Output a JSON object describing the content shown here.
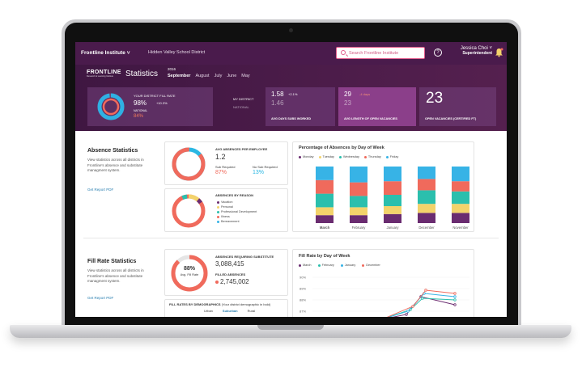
{
  "topnav": {
    "brand": "Frontline Institute",
    "district": "Hidden Valley School District",
    "search_placeholder": "Search Frontline Institute",
    "user_name": "Jessica Choi",
    "user_role": "Superintendent",
    "help_label": "?"
  },
  "hero": {
    "logo": "FRONTLINE",
    "logo_sub": "Research & Learning Institute",
    "title": "Statistics",
    "year": "2016",
    "months": [
      "September",
      "August",
      "July",
      "June",
      "May"
    ],
    "fill_rate": {
      "label": "YOUR DISTRICT FILL RATE",
      "value": "98%",
      "delta": "+10.3%",
      "national_label": "NATIONAL",
      "national_value": "84%",
      "ring_fraction": 0.98
    },
    "my_district_label": "MY DISTRICT",
    "national_label": "NATIONAL",
    "subs": {
      "value": "1.58",
      "delta": "+2.1%",
      "national": "1.46",
      "label": "AVG DAYS SUBS WORKED"
    },
    "vacancies": {
      "value": "29",
      "delta": "-4 days",
      "national": "23",
      "label": "AVG LENGTH OF OPEN VACANCIES"
    },
    "open": {
      "value": "23",
      "label": "OPEN VACANCIES (CERTIFIED FT)"
    }
  },
  "absence": {
    "title": "Absence Statistics",
    "desc": "View statistics across all districts in Frontline's absence and substitute managment system.",
    "link": "Get Report PDF",
    "avg": {
      "label": "AVG ABSENCES PER EMPLOYEE",
      "value": "1.2",
      "sub_req_label": "Sub Required",
      "sub_req_value": "87%",
      "no_sub_label": "No Sub Required",
      "no_sub_value": "13%"
    },
    "reason": {
      "label": "ABSENCES BY REASON",
      "items": [
        {
          "name": "Vacation",
          "color": "#6a2c70"
        },
        {
          "name": "Personal",
          "color": "#f3d36b"
        },
        {
          "name": "Professional Development",
          "color": "#2bbfad"
        },
        {
          "name": "Illness",
          "color": "#f06a5c"
        },
        {
          "name": "Bereavement",
          "color": "#37b3e6"
        }
      ]
    }
  },
  "absence_chart": {
    "chart_data": {
      "type": "bar",
      "title": "Percentage of Absences by Day of Week",
      "series": [
        {
          "name": "Monday",
          "color": "#6a2c70"
        },
        {
          "name": "Tuesday",
          "color": "#f3d36b"
        },
        {
          "name": "Wednesday",
          "color": "#2bbfad"
        },
        {
          "name": "Thursday",
          "color": "#f06a5c"
        },
        {
          "name": "Friday",
          "color": "#37b3e6"
        }
      ],
      "categories": [
        "March",
        "February",
        "January",
        "December",
        "November"
      ],
      "values": [
        [
          14,
          14,
          24,
          24,
          24
        ],
        [
          14,
          14,
          20,
          24,
          28
        ],
        [
          16,
          14,
          20,
          24,
          26
        ],
        [
          18,
          16,
          24,
          20,
          22
        ],
        [
          18,
          16,
          22,
          18,
          26
        ]
      ]
    }
  },
  "fill": {
    "title": "Fill Rate Statistics",
    "desc": "View statistics across all districts in Frontline's absence and substitute managment system.",
    "link": "Get Report PDF",
    "ring": {
      "value": "88%",
      "label": "Avg. Fill Rate",
      "fraction": 0.88
    },
    "req_label": "ABSENCES REQUIRING SUBSTITUTE",
    "req_value": "3,088,415",
    "filled_label": "FILLED ABSENCES",
    "filled_value": "2,745,002",
    "demo_label": "FILL RATES BY DEMOGRAPHICS",
    "demo_note": "(Your district demographic in bold)",
    "demo_cols": [
      "Urban",
      "Suburban",
      "Rural"
    ]
  },
  "fill_chart": {
    "chart_data": {
      "type": "line",
      "title": "Fill Rate by Day of Week",
      "series": [
        {
          "name": "March",
          "color": "#6a2c70"
        },
        {
          "name": "February",
          "color": "#2bbfad"
        },
        {
          "name": "January",
          "color": "#37b3e6"
        },
        {
          "name": "December",
          "color": "#f06a5c"
        }
      ],
      "yticks": [
        "90%",
        "89%",
        "88%",
        "87%"
      ]
    }
  }
}
